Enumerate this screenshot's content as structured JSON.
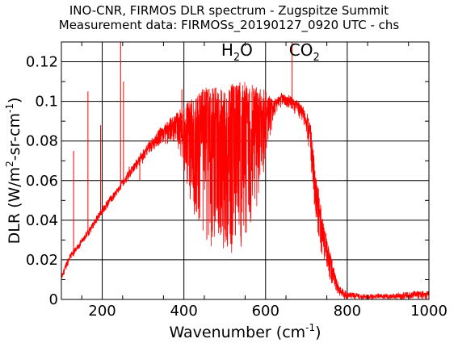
{
  "chart_data": {
    "type": "line",
    "title": "INO-CNR, FIRMOS DLR spectrum - Zugspitze Summit",
    "subtitle": "Measurement data: FIRMOSs_20190127_0920 UTC - chs",
    "xlabel": {
      "base": "Wavenumber (cm",
      "sup": "-1",
      "close": ")"
    },
    "ylabel": {
      "base": "DLR (W/m",
      "sup1": "2",
      "mid": "-sr-cm",
      "sup2": "-1",
      "close": ")"
    },
    "xlim": [
      100,
      1000
    ],
    "ylim": [
      0,
      0.13
    ],
    "x_ticks": [
      200,
      400,
      600,
      800,
      1000
    ],
    "x_tick_labels": [
      "200",
      "400",
      "600",
      "800",
      "1000"
    ],
    "y_ticks": [
      0,
      0.02,
      0.04,
      0.06,
      0.08,
      0.1,
      0.12
    ],
    "y_tick_labels": [
      "0",
      "0.02",
      "0.04",
      "0.06",
      "0.08",
      "0.1",
      "0.12"
    ],
    "grid": true,
    "line_color": "#ff0000",
    "annotations": [
      {
        "base": "H",
        "sub": "2",
        "rest": "O",
        "x": 530,
        "y": 0.123
      },
      {
        "base": "CO",
        "sub": "2",
        "rest": "",
        "x": 695,
        "y": 0.123
      }
    ],
    "envelope": {
      "x": [
        100,
        120,
        150,
        200,
        250,
        300,
        350,
        380,
        400,
        420,
        450,
        500,
        550,
        600,
        620,
        640,
        660,
        680,
        700,
        710,
        720,
        730,
        740,
        760,
        780,
        800,
        850,
        900,
        950,
        1000
      ],
      "y": [
        0.012,
        0.022,
        0.03,
        0.046,
        0.06,
        0.075,
        0.088,
        0.093,
        0.097,
        0.102,
        0.106,
        0.108,
        0.109,
        0.105,
        0.1,
        0.104,
        0.102,
        0.1,
        0.095,
        0.088,
        0.07,
        0.055,
        0.04,
        0.022,
        0.006,
        0.003,
        0.002,
        0.002,
        0.003,
        0.004
      ]
    },
    "absorption_windows": {
      "x": [
        100,
        150,
        250,
        330,
        380,
        420,
        460,
        500,
        560,
        600,
        620,
        660,
        700,
        730,
        760,
        790,
        1000
      ],
      "depth": [
        0.15,
        0.08,
        0.05,
        0.08,
        0.15,
        0.55,
        0.75,
        0.8,
        0.75,
        0.35,
        0.08,
        0.05,
        0.1,
        0.45,
        0.6,
        0.8,
        0.85
      ]
    },
    "spikes": [
      {
        "x": 130,
        "y": 0.075
      },
      {
        "x": 165,
        "y": 0.105
      },
      {
        "x": 196,
        "y": 0.088
      },
      {
        "x": 245,
        "y": 0.13
      },
      {
        "x": 252,
        "y": 0.11
      },
      {
        "x": 266,
        "y": 0.067
      },
      {
        "x": 292,
        "y": 0.06
      },
      {
        "x": 395,
        "y": 0.106
      },
      {
        "x": 665,
        "y": 0.13
      }
    ]
  }
}
